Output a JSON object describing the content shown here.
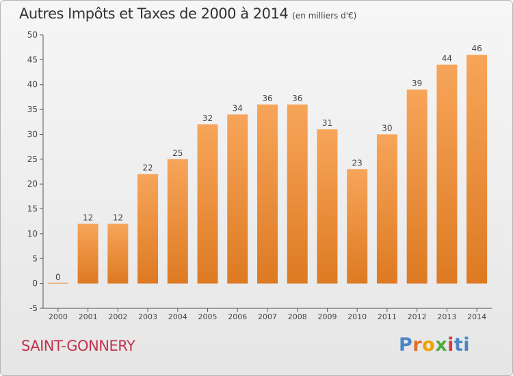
{
  "title": "Autres Impôts et Taxes de 2000 à 2014",
  "subtitle": "(en milliers d'€)",
  "commune": "SAINT-GONNERY",
  "logo": {
    "text": "Proxiti",
    "letters": [
      "P",
      "r",
      "o",
      "x",
      "i",
      "ti"
    ]
  },
  "colors": {
    "bar_light": "#f7a55a",
    "bar_dark": "#dd7a22",
    "axis_text": "#444444",
    "grid": "#dddddd"
  },
  "chart_data": {
    "type": "bar",
    "title": "Autres Impôts et Taxes de 2000 à 2014",
    "subtitle": "(en milliers d'€)",
    "xlabel": "",
    "ylabel": "",
    "categories": [
      "2000",
      "2001",
      "2002",
      "2003",
      "2004",
      "2005",
      "2006",
      "2007",
      "2008",
      "2009",
      "2010",
      "2011",
      "2012",
      "2013",
      "2014"
    ],
    "values": [
      0,
      12,
      12,
      22,
      25,
      32,
      34,
      36,
      36,
      31,
      23,
      30,
      39,
      44,
      46
    ],
    "ylim": [
      -5,
      50
    ],
    "yticks": [
      -5,
      0,
      5,
      10,
      15,
      20,
      25,
      30,
      35,
      40,
      45,
      50
    ],
    "grid": false,
    "data_labels": true,
    "legend": "none"
  }
}
